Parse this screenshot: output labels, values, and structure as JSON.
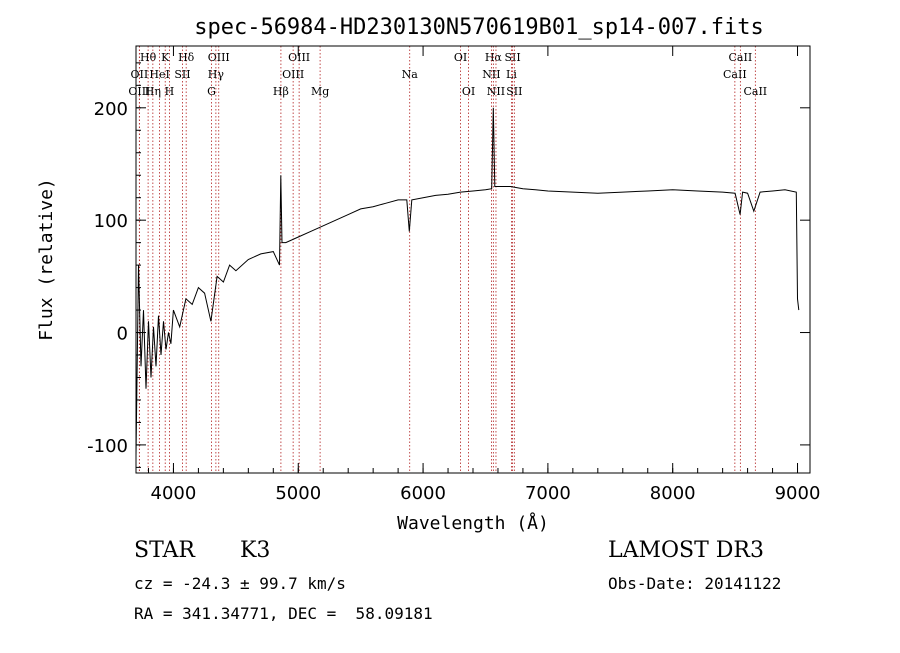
{
  "chart_data": {
    "type": "line",
    "title": "spec-56984-HD230130N570619B01_sp14-007.fits",
    "xlabel": "Wavelength (Å)",
    "ylabel": "Flux (relative)",
    "xlim": [
      3700,
      9100
    ],
    "ylim": [
      -125,
      255
    ],
    "x_ticks": [
      4000,
      5000,
      6000,
      7000,
      8000,
      9000
    ],
    "y_ticks": [
      -100,
      0,
      100,
      200
    ],
    "series": [
      {
        "name": "spectrum",
        "x": [
          3700,
          3720,
          3740,
          3760,
          3780,
          3800,
          3820,
          3840,
          3860,
          3880,
          3900,
          3920,
          3940,
          3960,
          3980,
          4000,
          4050,
          4100,
          4150,
          4200,
          4250,
          4300,
          4350,
          4400,
          4450,
          4500,
          4600,
          4700,
          4800,
          4850,
          4860,
          4870,
          4900,
          5000,
          5100,
          5200,
          5300,
          5400,
          5500,
          5600,
          5700,
          5800,
          5870,
          5890,
          5910,
          6000,
          6100,
          6200,
          6300,
          6400,
          6500,
          6550,
          6563,
          6575,
          6600,
          6700,
          6800,
          6900,
          7000,
          7200,
          7400,
          7600,
          7800,
          8000,
          8200,
          8400,
          8500,
          8540,
          8560,
          8600,
          8650,
          8700,
          8800,
          8900,
          8990,
          9000,
          9010
        ],
        "y": [
          -110,
          60,
          -30,
          20,
          -50,
          10,
          -40,
          5,
          -30,
          15,
          -20,
          10,
          -15,
          0,
          -10,
          20,
          5,
          30,
          25,
          40,
          35,
          10,
          50,
          45,
          60,
          55,
          65,
          70,
          72,
          60,
          140,
          80,
          80,
          85,
          90,
          95,
          100,
          105,
          110,
          112,
          115,
          118,
          118,
          90,
          118,
          120,
          122,
          123,
          125,
          126,
          127,
          128,
          200,
          130,
          130,
          130,
          128,
          127,
          126,
          125,
          124,
          125,
          126,
          127,
          126,
          125,
          124,
          105,
          125,
          124,
          108,
          125,
          126,
          127,
          125,
          30,
          20
        ]
      }
    ],
    "lines": [
      {
        "label": "Hθ",
        "wl": 3797,
        "row": 1
      },
      {
        "label": "OII",
        "wl": 3727,
        "row": 2
      },
      {
        "label": "OIII",
        "wl": 3727,
        "row": 3
      },
      {
        "label": "K",
        "wl": 3934,
        "row": 1
      },
      {
        "label": "HeI",
        "wl": 3889,
        "row": 2
      },
      {
        "label": "Hη",
        "wl": 3835,
        "row": 3
      },
      {
        "label": "Hδ",
        "wl": 4102,
        "row": 1
      },
      {
        "label": "SII",
        "wl": 4072,
        "row": 2
      },
      {
        "label": "H",
        "wl": 3968,
        "row": 3
      },
      {
        "label": "OIII",
        "wl": 4363,
        "row": 1
      },
      {
        "label": "Hγ",
        "wl": 4340,
        "row": 2
      },
      {
        "label": "G",
        "wl": 4305,
        "row": 3
      },
      {
        "label": "OIII",
        "wl": 5007,
        "row": 1
      },
      {
        "label": "OIII",
        "wl": 4959,
        "row": 2
      },
      {
        "label": "Hβ",
        "wl": 4861,
        "row": 3
      },
      {
        "label": "Mg",
        "wl": 5175,
        "row": 3
      },
      {
        "label": "Na",
        "wl": 5893,
        "row": 2
      },
      {
        "label": "OI",
        "wl": 6300,
        "row": 1
      },
      {
        "label": "OI",
        "wl": 6364,
        "row": 3
      },
      {
        "label": "Hα",
        "wl": 6563,
        "row": 1
      },
      {
        "label": "SII",
        "wl": 6717,
        "row": 1
      },
      {
        "label": "NII",
        "wl": 6548,
        "row": 2
      },
      {
        "label": "Li",
        "wl": 6708,
        "row": 2
      },
      {
        "label": "NII",
        "wl": 6584,
        "row": 3
      },
      {
        "label": "SII",
        "wl": 6731,
        "row": 3
      },
      {
        "label": "CaII",
        "wl": 8542,
        "row": 1
      },
      {
        "label": "CaII",
        "wl": 8498,
        "row": 2
      },
      {
        "label": "CaII",
        "wl": 8662,
        "row": 3
      }
    ]
  },
  "footer": {
    "class": "STAR",
    "subclass": "K3",
    "survey": "LAMOST DR3",
    "cz": "cz = -24.3 ± 99.7 km/s",
    "obs_date": "Obs-Date: 20141122",
    "coords": "RA = 341.34771, DEC =  58.09181"
  }
}
